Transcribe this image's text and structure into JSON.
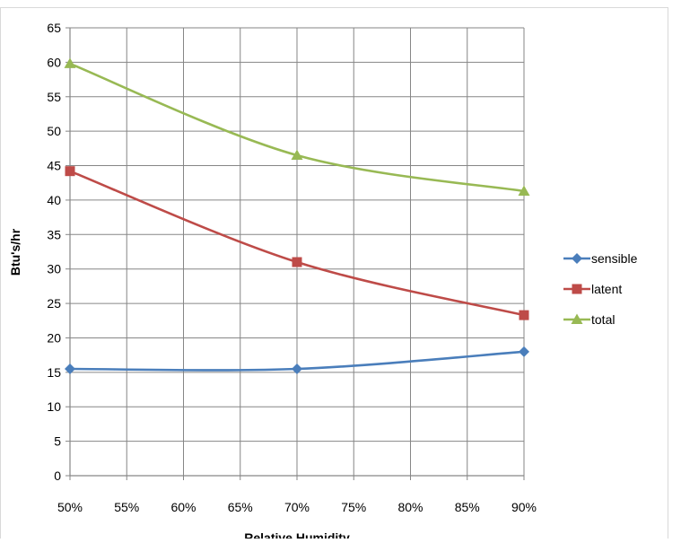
{
  "chart_data": {
    "type": "line",
    "title": "",
    "xlabel": "Relative Humidity",
    "ylabel": "Btu's/hr",
    "x": [
      50,
      70,
      90
    ],
    "x_ticks": [
      "50%",
      "55%",
      "60%",
      "65%",
      "70%",
      "75%",
      "80%",
      "85%",
      "90%"
    ],
    "xlim": [
      50,
      90
    ],
    "y_ticks": [
      "0",
      "5",
      "10",
      "15",
      "20",
      "25",
      "30",
      "35",
      "40",
      "45",
      "50",
      "55",
      "60",
      "65"
    ],
    "ylim": [
      0,
      65
    ],
    "grid": true,
    "legend_position": "right",
    "series": [
      {
        "name": "sensible",
        "values": [
          15.5,
          15.5,
          18.0
        ],
        "color": "#4A7EBB",
        "marker": "diamond"
      },
      {
        "name": "latent",
        "values": [
          44.2,
          31.0,
          23.3
        ],
        "color": "#BE4B48",
        "marker": "square"
      },
      {
        "name": "total",
        "values": [
          59.8,
          46.5,
          41.3
        ],
        "color": "#98B954",
        "marker": "triangle"
      }
    ]
  }
}
